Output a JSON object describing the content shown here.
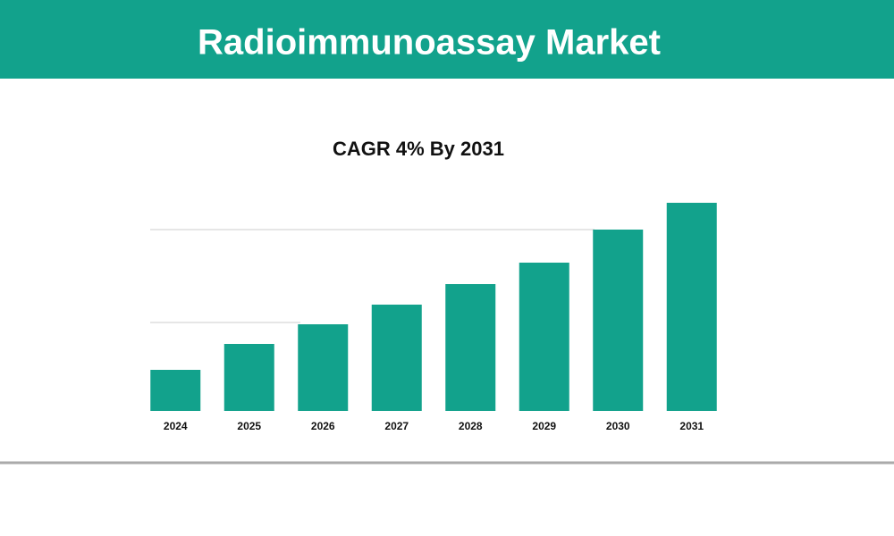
{
  "header": {
    "title": "Radioimmunoassay Market"
  },
  "chart_data": {
    "type": "bar",
    "title": "CAGR 4% By 2031",
    "categories": [
      "2024",
      "2025",
      "2026",
      "2027",
      "2028",
      "2029",
      "2030",
      "2031"
    ],
    "values": [
      46,
      75,
      97,
      119,
      142,
      166,
      203,
      233
    ],
    "color": "#12a28c",
    "ylim": [
      0,
      250
    ]
  }
}
